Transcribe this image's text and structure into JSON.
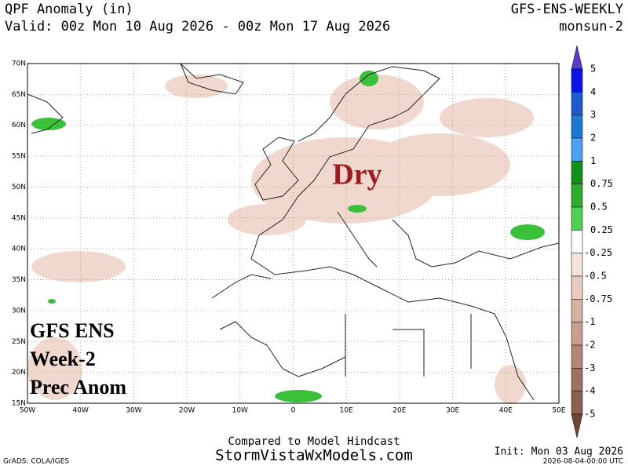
{
  "header": {
    "title": "QPF Anomaly (in)",
    "valid": "Valid: 00z Mon 10 Aug 2026 - 00z Mon 17 Aug 2026",
    "model": "GFS-ENS-WEEKLY",
    "run": "monsun-2"
  },
  "map": {
    "lat_labels": [
      "70N",
      "65N",
      "60N",
      "55N",
      "50N",
      "45N",
      "40N",
      "35N",
      "30N",
      "25N",
      "20N",
      "15N"
    ],
    "lon_labels": [
      "50W",
      "40W",
      "30W",
      "20W",
      "10W",
      "0",
      "10E",
      "20E",
      "30E",
      "40E",
      "50E"
    ],
    "annotation": "Dry",
    "overlay": [
      "GFS ENS",
      "Week-2",
      "Prec Anom"
    ]
  },
  "colorbar": {
    "labels": [
      "5",
      "4",
      "3",
      "2",
      "1",
      "0.75",
      "0.5",
      "0.25",
      "-0.25",
      "-0.5",
      "-0.75",
      "-1",
      "-2",
      "-3",
      "-4",
      "-5"
    ],
    "colors": [
      "#5a3cc8",
      "#0a14e6",
      "#1e5ad2",
      "#1e78d2",
      "#4ea0f0",
      "#12901a",
      "#2cae2c",
      "#52d052",
      "#ffffff",
      "#f5e4de",
      "#e8cabe",
      "#d8b0a2",
      "#c89c8e",
      "#b48676",
      "#9e7262",
      "#8c6050",
      "#6e4636"
    ]
  },
  "footer": {
    "note": "Compared to Model Hindcast",
    "site": "StormVistaWxModels.com",
    "init": "Init: Mon 03 Aug 2026",
    "grads": "GrADS: COLA/IGES",
    "stamp": "2026-08-04-00:00 UTC"
  }
}
